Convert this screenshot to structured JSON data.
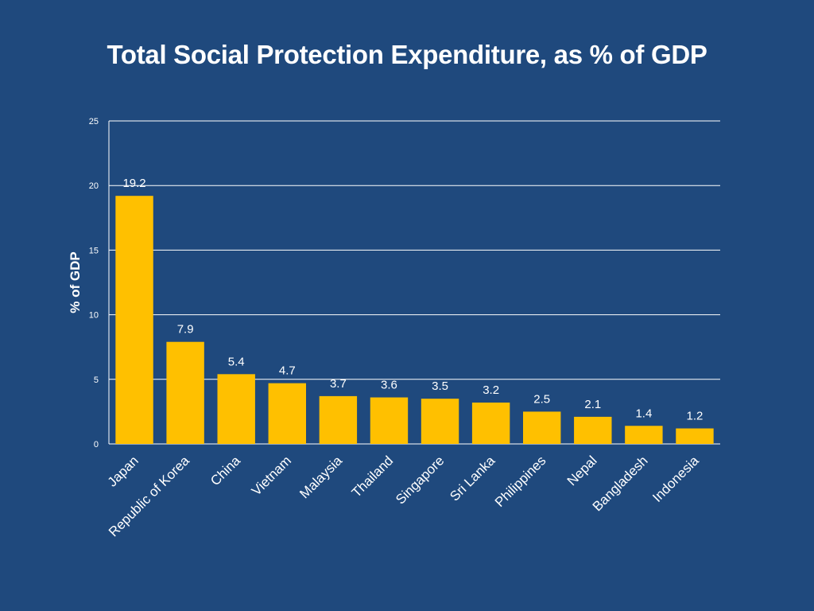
{
  "chart_data": {
    "type": "bar",
    "title": "Total Social Protection Expenditure, as % of GDP",
    "xlabel": "",
    "ylabel": "% of GDP",
    "ylim": [
      0,
      25
    ],
    "yticks": [
      0,
      5,
      10,
      15,
      20,
      25
    ],
    "grid": true,
    "categories": [
      "Japan",
      "Republic of Korea",
      "China",
      "Vietnam",
      "Malaysia",
      "Thailand",
      "Singapore",
      "Sri Lanka",
      "Philippines",
      "Nepal",
      "Bangladesh",
      "Indonesia"
    ],
    "values": [
      19.2,
      7.9,
      5.4,
      4.7,
      3.7,
      3.6,
      3.5,
      3.2,
      2.5,
      2.1,
      1.4,
      1.2
    ],
    "value_labels": [
      "19.2",
      "7.9",
      "5.4",
      "4.7",
      "3.7",
      "3.6",
      "3.5",
      "3.2",
      "2.5",
      "2.1",
      "1.4",
      "1.2"
    ],
    "colors": {
      "background": "#1F497D",
      "bar": "#FFC000",
      "text": "#FFFFFF",
      "gridline": "#FFFFFF"
    }
  }
}
